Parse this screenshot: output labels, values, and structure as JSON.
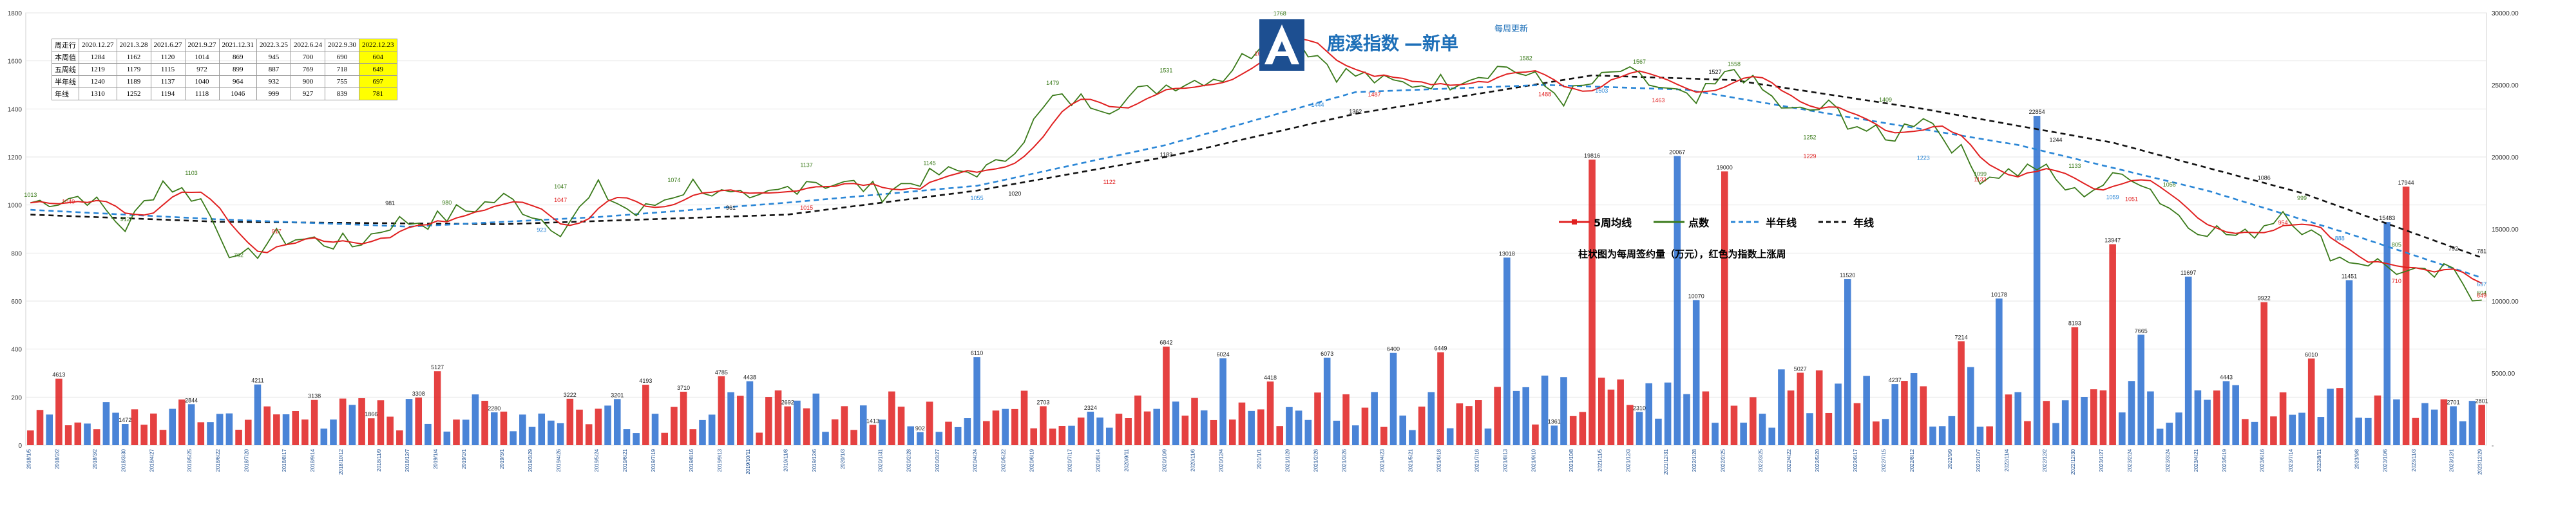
{
  "header": {
    "brand_left": "鹿溪指数",
    "brand_right": "新单",
    "update_note": "每周更新"
  },
  "info_table": {
    "columns": [
      "周走行",
      "2020.12.27",
      "2021.3.28",
      "2021.6.27",
      "2021.9.27",
      "2021.12.31",
      "2022.3.25",
      "2022.6.24",
      "2022.9.30",
      "2022.12.23"
    ],
    "rows": [
      {
        "label": "本周值",
        "values": [
          "1284",
          "1162",
          "1120",
          "1014",
          "869",
          "945",
          "700",
          "690",
          "604"
        ]
      },
      {
        "label": "五周线",
        "values": [
          "1219",
          "1179",
          "1115",
          "972",
          "899",
          "887",
          "769",
          "718",
          "649"
        ]
      },
      {
        "label": "半年线",
        "values": [
          "1240",
          "1189",
          "1137",
          "1040",
          "964",
          "932",
          "900",
          "755",
          "697"
        ]
      },
      {
        "label": "年线",
        "values": [
          "1310",
          "1252",
          "1194",
          "1118",
          "1046",
          "999",
          "927",
          "839",
          "781"
        ]
      }
    ],
    "highlight_column": 9
  },
  "legend": {
    "items": [
      {
        "label": "5周均线",
        "color": "#e02020",
        "style": "marker"
      },
      {
        "label": "点数",
        "color": "#3a7a1a",
        "style": "solid"
      },
      {
        "label": "半年线",
        "color": "#2a86d6",
        "style": "dashed"
      },
      {
        "label": "年线",
        "color": "#111111",
        "style": "dashed"
      }
    ]
  },
  "bar_note": "柱状图为每周签约量（万元），红色为指数上涨周",
  "colors": {
    "points": "#3a7a1a",
    "ma5": "#e02020",
    "half_year": "#2a86d6",
    "year": "#111111",
    "bar_up": "#e02020",
    "bar_down": "#2a6fd0",
    "highlight": "#ffff00",
    "brand": "#1d6fb8"
  },
  "chart_data": {
    "type": "line",
    "n_weeks": 260,
    "y_left": {
      "min": 0,
      "max": 1800,
      "ticks": [
        0,
        200,
        400,
        600,
        800,
        1000,
        1200,
        1400,
        1600,
        1800
      ]
    },
    "y_right": {
      "min": 0,
      "max": 30000,
      "ticks": [
        0,
        5000,
        10000,
        15000,
        20000,
        25000,
        30000
      ],
      "tick_labels": [
        "-",
        "5000.00",
        "10000.00",
        "15000.00",
        "20000.00",
        "25000.00",
        "30000.00"
      ]
    },
    "x_labels": [
      "2018/1/5",
      "2018/2/2",
      "2018/3/2",
      "2018/3/30",
      "2018/4/27",
      "2018/5/25",
      "2018/6/22",
      "2018/7/20",
      "2018/8/17",
      "2018/9/14",
      "2018/10/12",
      "2018/11/9",
      "2018/12/7",
      "2019/1/4",
      "2019/2/1",
      "2019/3/1",
      "2019/3/29",
      "2019/4/26",
      "2019/5/24",
      "2019/6/21",
      "2019/7/19",
      "2019/8/16",
      "2019/9/13",
      "2019/10/11",
      "2019/11/8",
      "2019/12/6",
      "2020/1/3",
      "2020/1/31",
      "2020/2/28",
      "2020/3/27",
      "2020/4/24",
      "2020/5/22",
      "2020/6/19",
      "2020/7/17",
      "2020/8/14",
      "2020/9/11",
      "2020/10/9",
      "2020/11/6",
      "2020/12/4",
      "2021/1/1",
      "2021/1/29",
      "2021/2/26",
      "2021/3/26",
      "2021/4/23",
      "2021/5/21",
      "2021/6/18",
      "2021/7/16",
      "2021/8/13",
      "2021/9/10",
      "2021/10/8",
      "2021/11/5",
      "2021/12/3",
      "2021/12/31",
      "2022/1/28",
      "2022/2/25",
      "2022/3/25",
      "2022/4/22",
      "2022/5/20",
      "2022/6/17",
      "2022/7/15",
      "2022/8/12",
      "2022/9/9",
      "2022/10/7",
      "2022/11/4",
      "2022/12/2",
      "2022/12/30",
      "2023/1/27",
      "2023/2/24",
      "2023/3/24",
      "2023/4/21",
      "2023/5/19",
      "2023/6/16",
      "2023/7/14",
      "2023/8/11",
      "2023/9/8",
      "2023/10/6",
      "2023/11/3",
      "2023/12/1",
      "2023/12/29"
    ],
    "anchors": {
      "index": [
        [
          0,
          1010
        ],
        [
          6,
          1040
        ],
        [
          10,
          905
        ],
        [
          14,
          1100
        ],
        [
          18,
          1020
        ],
        [
          22,
          760
        ],
        [
          26,
          870
        ],
        [
          30,
          850
        ],
        [
          34,
          830
        ],
        [
          38,
          920
        ],
        [
          44,
          950
        ],
        [
          50,
          1030
        ],
        [
          56,
          900
        ],
        [
          60,
          1060
        ],
        [
          64,
          960
        ],
        [
          70,
          1090
        ],
        [
          76,
          1000
        ],
        [
          82,
          1110
        ],
        [
          90,
          1060
        ],
        [
          96,
          1130
        ],
        [
          102,
          1150
        ],
        [
          108,
          1440
        ],
        [
          114,
          1420
        ],
        [
          120,
          1500
        ],
        [
          126,
          1540
        ],
        [
          132,
          1750
        ],
        [
          138,
          1560
        ],
        [
          144,
          1500
        ],
        [
          150,
          1520
        ],
        [
          156,
          1580
        ],
        [
          162,
          1450
        ],
        [
          168,
          1560
        ],
        [
          176,
          1420
        ],
        [
          180,
          1570
        ],
        [
          186,
          1380
        ],
        [
          190,
          1410
        ],
        [
          196,
          1260
        ],
        [
          200,
          1380
        ],
        [
          206,
          1120
        ],
        [
          212,
          1160
        ],
        [
          216,
          1040
        ],
        [
          222,
          1140
        ],
        [
          228,
          920
        ],
        [
          234,
          860
        ],
        [
          238,
          980
        ],
        [
          244,
          780
        ],
        [
          248,
          760
        ],
        [
          252,
          700
        ],
        [
          256,
          716
        ],
        [
          259,
          604
        ]
      ],
      "ma5": [
        [
          0,
          1000
        ],
        [
          10,
          990
        ],
        [
          20,
          850
        ],
        [
          30,
          870
        ],
        [
          40,
          920
        ],
        [
          50,
          960
        ],
        [
          60,
          980
        ],
        [
          70,
          1050
        ],
        [
          80,
          1050
        ],
        [
          90,
          1080
        ],
        [
          100,
          1150
        ],
        [
          110,
          1400
        ],
        [
          120,
          1480
        ],
        [
          130,
          1660
        ],
        [
          140,
          1520
        ],
        [
          150,
          1510
        ],
        [
          160,
          1490
        ],
        [
          170,
          1480
        ],
        [
          180,
          1460
        ],
        [
          190,
          1360
        ],
        [
          200,
          1310
        ],
        [
          210,
          1180
        ],
        [
          220,
          1100
        ],
        [
          230,
          960
        ],
        [
          240,
          880
        ],
        [
          250,
          720
        ],
        [
          259,
          649
        ]
      ],
      "half_year": [
        [
          0,
          980
        ],
        [
          20,
          940
        ],
        [
          40,
          910
        ],
        [
          60,
          950
        ],
        [
          80,
          1010
        ],
        [
          100,
          1080
        ],
        [
          120,
          1250
        ],
        [
          140,
          1470
        ],
        [
          160,
          1500
        ],
        [
          175,
          1480
        ],
        [
          190,
          1380
        ],
        [
          210,
          1250
        ],
        [
          230,
          1060
        ],
        [
          245,
          880
        ],
        [
          259,
          697
        ]
      ],
      "year": [
        [
          0,
          960
        ],
        [
          20,
          930
        ],
        [
          50,
          920
        ],
        [
          80,
          960
        ],
        [
          100,
          1060
        ],
        [
          120,
          1200
        ],
        [
          140,
          1380
        ],
        [
          165,
          1540
        ],
        [
          180,
          1520
        ],
        [
          200,
          1400
        ],
        [
          220,
          1260
        ],
        [
          240,
          1050
        ],
        [
          259,
          781
        ]
      ]
    },
    "labels": {
      "index": [
        [
          0,
          1013
        ],
        [
          10,
          912
        ],
        [
          17,
          1103
        ],
        [
          22,
          762
        ],
        [
          44,
          980
        ],
        [
          56,
          1047
        ],
        [
          68,
          1074
        ],
        [
          82,
          1137
        ],
        [
          95,
          1145
        ],
        [
          108,
          1479
        ],
        [
          120,
          1531
        ],
        [
          132,
          1768
        ],
        [
          158,
          1582
        ],
        [
          170,
          1567
        ],
        [
          180,
          1558
        ],
        [
          188,
          1252
        ],
        [
          196,
          1409
        ],
        [
          206,
          1099
        ],
        [
          216,
          1133
        ],
        [
          226,
          1056
        ],
        [
          240,
          999
        ],
        [
          250,
          805
        ],
        [
          259,
          604
        ]
      ],
      "ma5": [
        [
          4,
          1040
        ],
        [
          26,
          917
        ],
        [
          56,
          1047
        ],
        [
          82,
          1015
        ],
        [
          114,
          1122
        ],
        [
          130,
          1657
        ],
        [
          142,
          1487
        ],
        [
          160,
          1488
        ],
        [
          172,
          1463
        ],
        [
          188,
          1229
        ],
        [
          206,
          1133
        ],
        [
          222,
          1051
        ],
        [
          238,
          954
        ],
        [
          250,
          710
        ],
        [
          259,
          649
        ]
      ],
      "half_year": [
        [
          54,
          923
        ],
        [
          100,
          1055
        ],
        [
          136,
          1444
        ],
        [
          166,
          1503
        ],
        [
          200,
          1223
        ],
        [
          220,
          1059
        ],
        [
          244,
          888
        ],
        [
          259,
          697
        ]
      ],
      "year": [
        [
          38,
          981
        ],
        [
          74,
          961
        ],
        [
          104,
          1020
        ],
        [
          120,
          1183
        ],
        [
          140,
          1362
        ],
        [
          178,
          1527
        ],
        [
          214,
          1244
        ],
        [
          236,
          1086
        ],
        [
          256,
          792
        ],
        [
          259,
          781
        ]
      ]
    },
    "bar_peaks": [
      [
        4,
        4613
      ],
      [
        15,
        1472
      ],
      [
        27,
        2844
      ],
      [
        37,
        4211
      ],
      [
        46,
        3138
      ],
      [
        56,
        1866
      ],
      [
        63,
        3308
      ],
      [
        67,
        5127
      ],
      [
        76,
        2280
      ],
      [
        88,
        3222
      ],
      [
        95,
        3201
      ],
      [
        101,
        4193
      ],
      [
        107,
        3710
      ],
      [
        112,
        4785
      ],
      [
        118,
        4438
      ],
      [
        124,
        2692
      ],
      [
        138,
        1413
      ],
      [
        145,
        902
      ],
      [
        155,
        6110
      ],
      [
        165,
        2703
      ],
      [
        173,
        2324
      ],
      [
        185,
        6842
      ],
      [
        195,
        6024
      ],
      [
        203,
        4418
      ],
      [
        212,
        6073
      ],
      [
        222,
        6400
      ],
      [
        230,
        6449
      ],
      [
        241,
        13018
      ],
      [
        248,
        1361
      ],
      [
        255,
        19816
      ],
      [
        263,
        2310
      ],
      [
        268,
        20067
      ],
      [
        272,
        10070
      ],
      [
        276,
        19000
      ],
      [
        289,
        5027
      ],
      [
        296,
        11520
      ],
      [
        305,
        4237
      ],
      [
        315,
        7214
      ],
      [
        322,
        10178
      ],
      [
        328,
        22854
      ],
      [
        334,
        8193
      ],
      [
        340,
        13947
      ],
      [
        345,
        7665
      ],
      [
        352,
        11697
      ],
      [
        358,
        4443
      ],
      [
        364,
        9922
      ],
      [
        372,
        6010
      ],
      [
        378,
        11451
      ],
      [
        384,
        15483
      ],
      [
        388,
        17944
      ],
      [
        395,
        2701
      ],
      [
        400,
        2801
      ]
    ]
  }
}
